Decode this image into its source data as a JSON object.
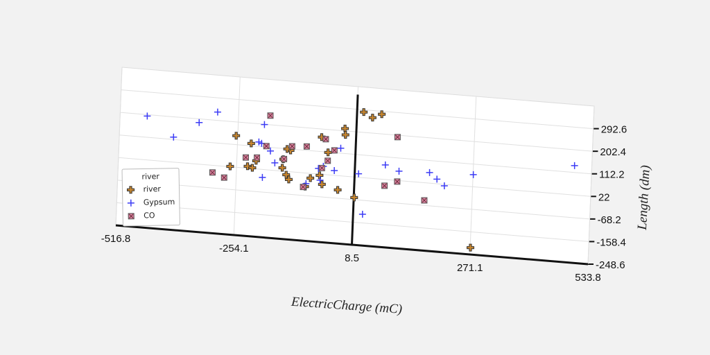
{
  "chart_data": {
    "type": "scatter",
    "x_label": "ElectricCharge (mC)",
    "y_label": "Length (dm)",
    "legend_title": "river",
    "xlim": [
      -516.8,
      533.8
    ],
    "xticks": [
      -516.8,
      -254.1,
      8.5,
      271.1,
      533.8
    ],
    "ylim": [
      -248.6,
      382.8
    ],
    "yticks": [
      -248.6,
      -158.4,
      -68.2,
      22.0,
      112.2,
      202.4,
      292.6
    ],
    "grid": true,
    "legend": "lower left",
    "series": [
      {
        "name": "river",
        "color": "#c9872f",
        "marker": "P",
        "x": [
          -257.6,
          -223.6,
          -229.8,
          -219.0,
          -211.3,
          -268.4,
          -151.1,
          -152.6,
          -135.7,
          -143.4,
          -137.2,
          -100.2,
          -89.4,
          -63.2,
          -67.8,
          -52.4,
          -16.9,
          -15.3,
          -27.7,
          9.4,
          23.3,
          43.3,
          63.4,
          271.7,
          -143.4,
          -69.3
        ],
        "values": [
          147.7,
          121.8,
          29.7,
          25.2,
          54.3,
          23.4,
          69.6,
          35.0,
          106.9,
          8.6,
          -9.4,
          -32.3,
          3.1,
          -17.9,
          170.2,
          111.3,
          211.7,
          186.9,
          -34.9,
          -59.9,
          283.4,
          264.2,
          280.9,
          -221.3,
          111.6,
          17.2
        ]
      },
      {
        "name": "Gypsum",
        "color": "#3b3bf5",
        "marker": "+",
        "x": [
          -456.6,
          -396.4,
          -340.9,
          -300.8,
          -195.9,
          -200.5,
          -206.7,
          -180.4,
          -169.6,
          -195.9,
          -67.8,
          -72.4,
          -61.6,
          -37.0,
          -24.6,
          17.1,
          29.4,
          75.7,
          106.6,
          174.5,
          191.4,
          208.4,
          271.7,
          495.4,
          -98.6
        ],
        "values": [
          196.9,
          121.6,
          187.9,
          235.6,
          201.2,
          125.5,
          130.2,
          98.0,
          52.4,
          -9.7,
          -1.9,
          44.4,
          54.3,
          41.0,
          132.1,
          36.3,
          -123.7,
          80.2,
          59.7,
          64.2,
          40.6,
          16.4,
          70.2,
          139.4,
          -20.5
        ]
      },
      {
        "name": "CO",
        "color": "#d9839f",
        "marker": "X",
        "x": [
          -183.5,
          -234.4,
          -189.7,
          -307.0,
          -280.7,
          -209.7,
          -149.6,
          -132.6,
          -100.2,
          -58.5,
          -38.5,
          -52.4,
          -64.7,
          100.4,
          103.5,
          75.7,
          165.2,
          -104.8
        ],
        "values": [
          239.0,
          64.3,
          116.0,
          -6.6,
          -23.1,
          67.4,
          70.3,
          123.7,
          127.8,
          163.2,
          121.6,
          78.0,
          47.1,
          194.9,
          17.8,
          -3.0,
          -48.1,
          -34.3
        ]
      }
    ]
  }
}
